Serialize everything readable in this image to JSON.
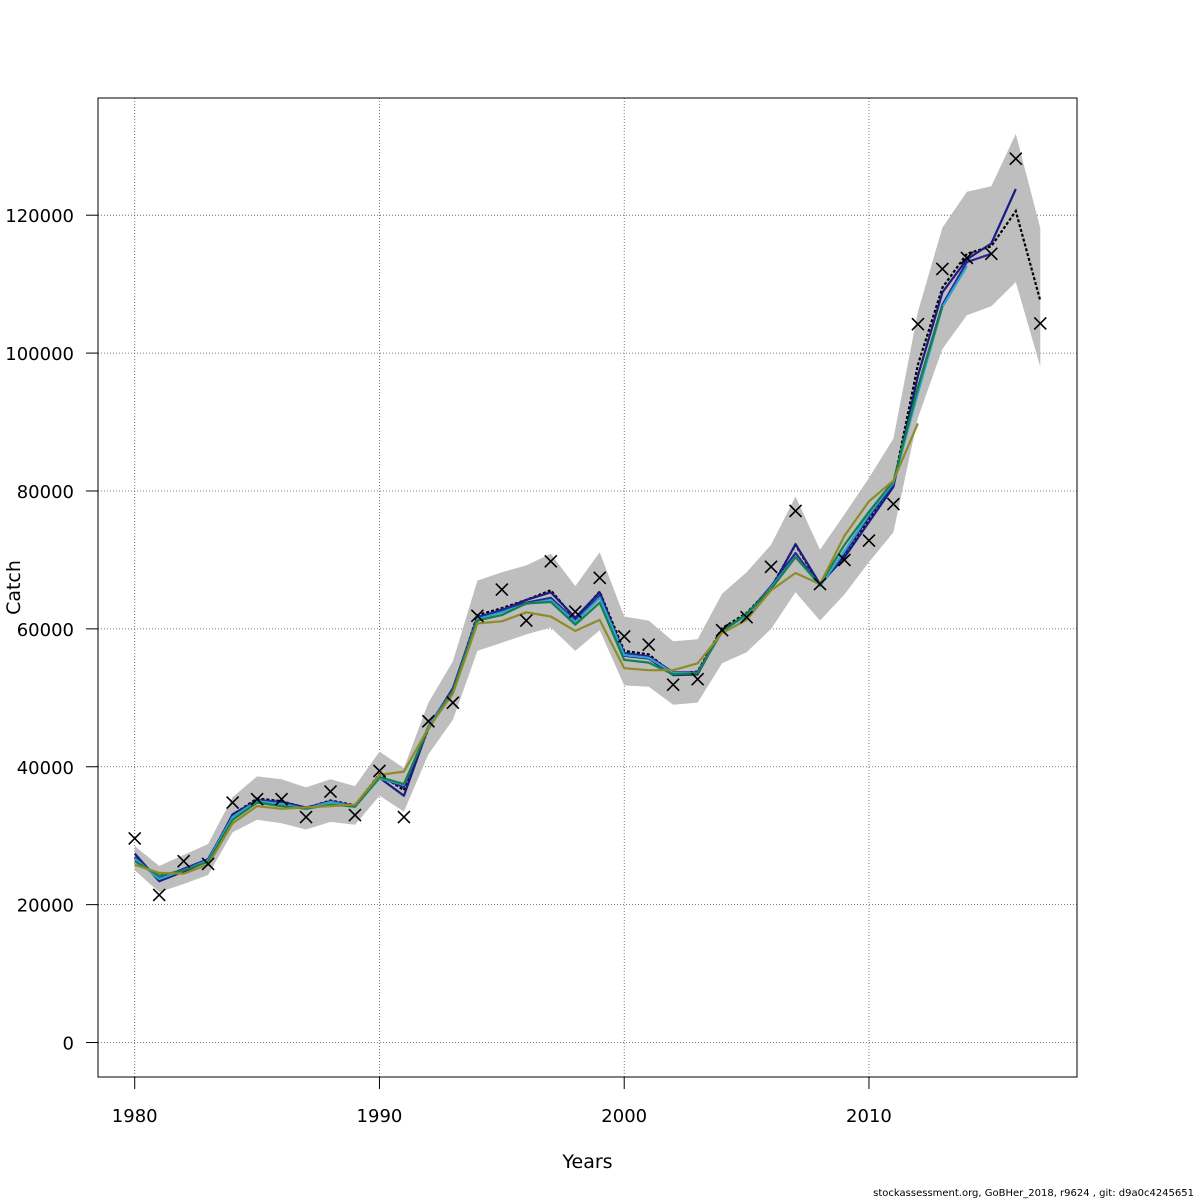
{
  "footer": "stockassessment.org, GoBHer_2018, r9624 , git: d9a0c4245651",
  "chart_data": {
    "type": "line",
    "title": "",
    "xlabel": "Years",
    "ylabel": "Catch",
    "xlim": [
      1978.5,
      2018.5
    ],
    "ylim": [
      -5000,
      137000
    ],
    "xticks": [
      1980,
      1990,
      2000,
      2010
    ],
    "yticks": [
      0,
      20000,
      40000,
      60000,
      80000,
      100000,
      120000
    ],
    "ytick_labels": [
      "0",
      "20000",
      "40000",
      "60000",
      "80000",
      "100000",
      "120000"
    ],
    "grid": true,
    "legend": "none",
    "colors": {
      "band": "#bebebe",
      "base": "#000000",
      "observed": "#000000",
      "retro": [
        "#1b1b80",
        "#2a2599",
        "#2aa6cc",
        "#17804a",
        "#8f8b2a"
      ]
    },
    "confidence_band": {
      "x": [
        1980,
        1981,
        1982,
        1983,
        1984,
        1985,
        1986,
        1987,
        1988,
        1989,
        1990,
        1991,
        1992,
        1993,
        1994,
        1995,
        1996,
        1997,
        1998,
        1999,
        2000,
        2001,
        2002,
        2003,
        2004,
        2005,
        2006,
        2007,
        2008,
        2009,
        2010,
        2011,
        2012,
        2013,
        2014,
        2015,
        2016,
        2017
      ],
      "lower": [
        25000,
        21800,
        23000,
        24300,
        30500,
        32300,
        31800,
        30900,
        32000,
        31600,
        35800,
        33500,
        41800,
        46800,
        56800,
        58000,
        59200,
        60200,
        56800,
        59800,
        51800,
        51600,
        49000,
        49300,
        55000,
        56600,
        60000,
        65300,
        61200,
        65000,
        69700,
        74000,
        90600,
        100600,
        105500,
        106800,
        110300,
        98000
      ],
      "upper": [
        28500,
        25600,
        27200,
        28800,
        35600,
        38600,
        38200,
        37000,
        38200,
        37200,
        42200,
        39800,
        49300,
        55300,
        67000,
        68200,
        69200,
        70900,
        66200,
        71100,
        61800,
        61200,
        58200,
        58500,
        65100,
        68200,
        72200,
        79200,
        71500,
        76600,
        81900,
        87600,
        106000,
        118200,
        123400,
        124200,
        131800,
        118100
      ]
    },
    "base_estimate": {
      "x": [
        1980,
        1981,
        1982,
        1983,
        1984,
        1985,
        1986,
        1987,
        1988,
        1989,
        1990,
        1991,
        1992,
        1993,
        1994,
        1995,
        1996,
        1997,
        1998,
        1999,
        2000,
        2001,
        2002,
        2003,
        2004,
        2005,
        2006,
        2007,
        2008,
        2009,
        2010,
        2011,
        2012,
        2013,
        2014,
        2015,
        2016,
        2017
      ],
      "y": [
        26800,
        23700,
        25100,
        26500,
        33000,
        35400,
        35000,
        34000,
        35100,
        34400,
        38900,
        36600,
        45500,
        51100,
        62000,
        63000,
        64200,
        65600,
        61400,
        65400,
        56800,
        56300,
        53500,
        53800,
        60100,
        62300,
        66000,
        72200,
        66300,
        70800,
        75800,
        80900,
        98300,
        109500,
        114400,
        115500,
        120600,
        107600
      ]
    },
    "retro_series": [
      {
        "x": [
          1980,
          1981,
          1982,
          1983,
          1984,
          1985,
          1986,
          1987,
          1988,
          1989,
          1990,
          1991,
          1992,
          1993,
          1994,
          1995,
          1996,
          1997,
          1998,
          1999,
          2000,
          2001,
          2002,
          2003,
          2004,
          2005,
          2006,
          2007,
          2008,
          2009,
          2010,
          2011,
          2012,
          2013,
          2014,
          2015,
          2016
        ],
        "y": [
          27400,
          23400,
          24800,
          26300,
          33100,
          35100,
          34900,
          34100,
          34900,
          34200,
          38400,
          35800,
          45700,
          51400,
          61700,
          62700,
          64200,
          65300,
          61600,
          65300,
          56100,
          55700,
          53300,
          53400,
          59900,
          61900,
          65800,
          72300,
          66500,
          70400,
          75500,
          80600,
          96700,
          108800,
          113600,
          115900,
          123800
        ]
      },
      {
        "x": [
          1980,
          1981,
          1982,
          1983,
          1984,
          1985,
          1986,
          1987,
          1988,
          1989,
          1990,
          1991,
          1992,
          1993,
          1994,
          1995,
          1996,
          1997,
          1998,
          1999,
          2000,
          2001,
          2002,
          2003,
          2004,
          2005,
          2006,
          2007,
          2008,
          2009,
          2010,
          2011,
          2012,
          2013,
          2014,
          2015
        ],
        "y": [
          26900,
          23800,
          25200,
          26600,
          32800,
          35200,
          34800,
          34000,
          35000,
          34300,
          38500,
          37000,
          45900,
          51200,
          61600,
          62800,
          63800,
          64500,
          61200,
          64800,
          56500,
          56000,
          53700,
          53700,
          59800,
          62000,
          66200,
          71000,
          66300,
          71000,
          76300,
          81000,
          95000,
          107000,
          113200,
          114400
        ]
      },
      {
        "x": [
          1980,
          1981,
          1982,
          1983,
          1984,
          1985,
          1986,
          1987,
          1988,
          1989,
          1990,
          1991,
          1992,
          1993,
          1994,
          1995,
          1996,
          1997,
          1998,
          1999,
          2000,
          2001,
          2002,
          2003,
          2004,
          2005,
          2006,
          2007,
          2008,
          2009,
          2010,
          2011,
          2012,
          2013,
          2014
        ],
        "y": [
          26700,
          23700,
          25000,
          26400,
          32700,
          35000,
          34600,
          33900,
          34900,
          34200,
          38300,
          37400,
          45800,
          51000,
          61400,
          62400,
          63600,
          64200,
          61000,
          64500,
          56200,
          55800,
          53600,
          53600,
          59700,
          61900,
          66000,
          70500,
          66200,
          71300,
          76600,
          81200,
          94200,
          106700,
          112600
        ]
      },
      {
        "x": [
          1980,
          1981,
          1982,
          1983,
          1984,
          1985,
          1986,
          1987,
          1988,
          1989,
          1990,
          1991,
          1992,
          1993,
          1994,
          1995,
          1996,
          1997,
          1998,
          1999,
          2000,
          2001,
          2002,
          2003,
          2004,
          2005,
          2006,
          2007,
          2008,
          2009,
          2010,
          2011,
          2012,
          2013
        ],
        "y": [
          26300,
          24200,
          25000,
          26200,
          32300,
          34800,
          34300,
          33900,
          34500,
          34200,
          38500,
          37500,
          45500,
          51000,
          61200,
          62000,
          63700,
          63900,
          60600,
          63800,
          55500,
          55100,
          53400,
          53600,
          59600,
          62200,
          65800,
          70400,
          66500,
          72200,
          77000,
          81400,
          95000,
          106800
        ]
      },
      {
        "x": [
          1980,
          1981,
          1982,
          1983,
          1984,
          1985,
          1986,
          1987,
          1988,
          1989,
          1990,
          1991,
          1992,
          1993,
          1994,
          1995,
          1996,
          1997,
          1998,
          1999,
          2000,
          2001,
          2002,
          2003,
          2004,
          2005,
          2006,
          2007,
          2008,
          2009,
          2010,
          2011,
          2012
        ],
        "y": [
          25800,
          24600,
          24500,
          25800,
          31800,
          34300,
          33900,
          34100,
          34300,
          34500,
          38800,
          39300,
          45600,
          50600,
          60800,
          61100,
          62400,
          61800,
          59700,
          61300,
          54300,
          54000,
          54000,
          55000,
          59400,
          61300,
          65600,
          68100,
          66500,
          73500,
          78500,
          81500,
          89800
        ]
      }
    ],
    "observed": {
      "x": [
        1980,
        1981,
        1982,
        1983,
        1984,
        1985,
        1986,
        1987,
        1988,
        1989,
        1990,
        1991,
        1992,
        1993,
        1994,
        1995,
        1996,
        1997,
        1998,
        1999,
        2000,
        2001,
        2002,
        2003,
        2004,
        2005,
        2006,
        2007,
        2008,
        2009,
        2010,
        2011,
        2012,
        2013,
        2014,
        2015,
        2016,
        2017
      ],
      "y": [
        29600,
        21400,
        26300,
        25900,
        34800,
        35300,
        35300,
        32700,
        36400,
        33000,
        39400,
        32700,
        46600,
        49300,
        61900,
        65700,
        61200,
        69800,
        62500,
        67400,
        58900,
        57700,
        51900,
        52700,
        59800,
        61700,
        69000,
        77100,
        66500,
        70000,
        72800,
        78100,
        104200,
        112200,
        113800,
        114400,
        128200,
        104300
      ]
    }
  }
}
